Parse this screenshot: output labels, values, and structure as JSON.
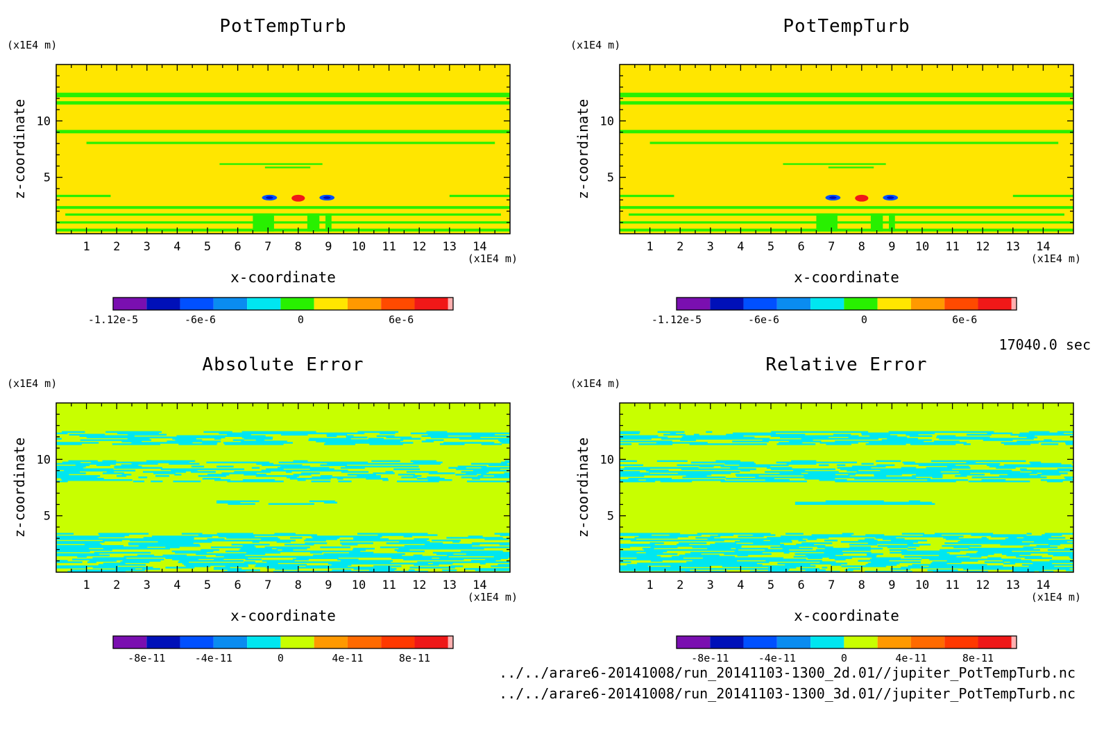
{
  "time_label": "17040.0 sec",
  "files": [
    "../../arare6-20141008/run_20141103-1300_2d.01//jupiter_PotTempTurb.nc",
    "../../arare6-20141008/run_20141103-1300_3d.01//jupiter_PotTempTurb.nc"
  ],
  "chart_data": [
    {
      "type": "heatmap",
      "title": "PotTempTurb",
      "xlabel": "x-coordinate",
      "ylabel": "z-coordinate",
      "x_unit": "(x1E4 m)",
      "y_unit": "(x1E4 m)",
      "xlim": [
        0,
        15
      ],
      "ylim": [
        0,
        15
      ],
      "x_ticks": [
        1,
        2,
        3,
        4,
        5,
        6,
        7,
        8,
        9,
        10,
        11,
        12,
        13,
        14
      ],
      "y_ticks": [
        5,
        10
      ],
      "colorbar": {
        "colors": [
          "#7a0fb0",
          "#0010b8",
          "#0050ff",
          "#0a8cf0",
          "#00e6f0",
          "#28f000",
          "#ffe600",
          "#ff9900",
          "#ff4a00",
          "#f01818",
          "#ffb0b0"
        ],
        "tick_labels": [
          "-1.12e-5",
          "-6e-6",
          "0",
          "6e-6"
        ],
        "tick_values": [
          -1.12e-05,
          -6e-06,
          0,
          6e-06
        ],
        "range": [
          -1.12e-05,
          8.8e-06
        ]
      },
      "background_level": "#ffe600",
      "band_level": "#28f000",
      "features": [
        {
          "kind": "band",
          "z": [
            12.1,
            12.5
          ],
          "x": [
            0,
            15
          ]
        },
        {
          "kind": "band",
          "z": [
            11.45,
            11.75
          ],
          "x": [
            0,
            15
          ]
        },
        {
          "kind": "band",
          "z": [
            8.9,
            9.2
          ],
          "x": [
            0,
            15
          ]
        },
        {
          "kind": "band",
          "z": [
            7.95,
            8.15
          ],
          "x": [
            1,
            14.5
          ]
        },
        {
          "kind": "band",
          "z": [
            6.1,
            6.25
          ],
          "x": [
            5.4,
            8.8
          ]
        },
        {
          "kind": "band",
          "z": [
            5.8,
            5.95
          ],
          "x": [
            6.9,
            8.4
          ]
        },
        {
          "kind": "band",
          "z": [
            3.25,
            3.45
          ],
          "x": [
            0,
            1.8
          ]
        },
        {
          "kind": "band",
          "z": [
            3.25,
            3.45
          ],
          "x": [
            13,
            15
          ]
        },
        {
          "kind": "band",
          "z": [
            2.2,
            2.45
          ],
          "x": [
            0,
            15
          ]
        },
        {
          "kind": "band",
          "z": [
            1.6,
            1.8
          ],
          "x": [
            0.3,
            14.7
          ]
        },
        {
          "kind": "band",
          "z": [
            0.9,
            1.1
          ],
          "x": [
            0,
            15
          ]
        },
        {
          "kind": "band",
          "z": [
            0.2,
            0.45
          ],
          "x": [
            0,
            15
          ]
        },
        {
          "kind": "band",
          "z": [
            0.2,
            1.8
          ],
          "x": [
            6.5,
            7.2
          ]
        },
        {
          "kind": "band",
          "z": [
            0.2,
            1.8
          ],
          "x": [
            8.3,
            8.7
          ]
        },
        {
          "kind": "band",
          "z": [
            0.2,
            1.8
          ],
          "x": [
            8.9,
            9.1
          ]
        },
        {
          "kind": "blob",
          "x": 7.05,
          "z": 3.2,
          "rx": 0.25,
          "rz": 0.25,
          "level": "#0050ff"
        },
        {
          "kind": "blob",
          "x": 8.95,
          "z": 3.2,
          "rx": 0.25,
          "rz": 0.25,
          "level": "#0050ff"
        },
        {
          "kind": "blob",
          "x": 7.05,
          "z": 3.2,
          "rx": 0.12,
          "rz": 0.12,
          "level": "#0010b8"
        },
        {
          "kind": "blob",
          "x": 8.95,
          "z": 3.2,
          "rx": 0.12,
          "rz": 0.12,
          "level": "#0010b8"
        },
        {
          "kind": "blob",
          "x": 8.0,
          "z": 3.15,
          "rx": 0.22,
          "rz": 0.3,
          "level": "#f01818"
        }
      ]
    },
    {
      "type": "heatmap",
      "title": "PotTempTurb",
      "xlabel": "x-coordinate",
      "ylabel": "z-coordinate",
      "x_unit": "(x1E4 m)",
      "y_unit": "(x1E4 m)",
      "xlim": [
        0,
        15
      ],
      "ylim": [
        0,
        15
      ],
      "x_ticks": [
        1,
        2,
        3,
        4,
        5,
        6,
        7,
        8,
        9,
        10,
        11,
        12,
        13,
        14
      ],
      "y_ticks": [
        5,
        10
      ],
      "colorbar": {
        "colors": [
          "#7a0fb0",
          "#0010b8",
          "#0050ff",
          "#0a8cf0",
          "#00e6f0",
          "#28f000",
          "#ffe600",
          "#ff9900",
          "#ff4a00",
          "#f01818",
          "#ffb0b0"
        ],
        "tick_labels": [
          "-1.12e-5",
          "-6e-6",
          "0",
          "6e-6"
        ],
        "tick_values": [
          -1.12e-05,
          -6e-06,
          0,
          6e-06
        ],
        "range": [
          -1.12e-05,
          8.8e-06
        ]
      },
      "background_level": "#ffe600",
      "band_level": "#28f000",
      "features": [
        {
          "kind": "band",
          "z": [
            12.1,
            12.5
          ],
          "x": [
            0,
            15
          ]
        },
        {
          "kind": "band",
          "z": [
            11.45,
            11.75
          ],
          "x": [
            0,
            15
          ]
        },
        {
          "kind": "band",
          "z": [
            8.9,
            9.2
          ],
          "x": [
            0,
            15
          ]
        },
        {
          "kind": "band",
          "z": [
            7.95,
            8.15
          ],
          "x": [
            1,
            14.5
          ]
        },
        {
          "kind": "band",
          "z": [
            6.1,
            6.25
          ],
          "x": [
            5.4,
            8.8
          ]
        },
        {
          "kind": "band",
          "z": [
            5.8,
            5.95
          ],
          "x": [
            6.9,
            8.4
          ]
        },
        {
          "kind": "band",
          "z": [
            3.25,
            3.45
          ],
          "x": [
            0,
            1.8
          ]
        },
        {
          "kind": "band",
          "z": [
            3.25,
            3.45
          ],
          "x": [
            13,
            15
          ]
        },
        {
          "kind": "band",
          "z": [
            2.2,
            2.45
          ],
          "x": [
            0,
            15
          ]
        },
        {
          "kind": "band",
          "z": [
            1.6,
            1.8
          ],
          "x": [
            0.3,
            14.7
          ]
        },
        {
          "kind": "band",
          "z": [
            0.9,
            1.1
          ],
          "x": [
            0,
            15
          ]
        },
        {
          "kind": "band",
          "z": [
            0.2,
            0.45
          ],
          "x": [
            0,
            15
          ]
        },
        {
          "kind": "band",
          "z": [
            0.2,
            1.8
          ],
          "x": [
            6.5,
            7.2
          ]
        },
        {
          "kind": "band",
          "z": [
            0.2,
            1.8
          ],
          "x": [
            8.3,
            8.7
          ]
        },
        {
          "kind": "band",
          "z": [
            0.2,
            1.8
          ],
          "x": [
            8.9,
            9.1
          ]
        },
        {
          "kind": "blob",
          "x": 7.05,
          "z": 3.2,
          "rx": 0.25,
          "rz": 0.25,
          "level": "#0050ff"
        },
        {
          "kind": "blob",
          "x": 8.95,
          "z": 3.2,
          "rx": 0.25,
          "rz": 0.25,
          "level": "#0050ff"
        },
        {
          "kind": "blob",
          "x": 7.05,
          "z": 3.2,
          "rx": 0.12,
          "rz": 0.12,
          "level": "#0010b8"
        },
        {
          "kind": "blob",
          "x": 8.95,
          "z": 3.2,
          "rx": 0.12,
          "rz": 0.12,
          "level": "#0010b8"
        },
        {
          "kind": "blob",
          "x": 8.0,
          "z": 3.15,
          "rx": 0.22,
          "rz": 0.3,
          "level": "#f01818"
        }
      ]
    },
    {
      "type": "heatmap",
      "title": "Absolute Error",
      "xlabel": "x-coordinate",
      "ylabel": "z-coordinate",
      "x_unit": "(x1E4 m)",
      "y_unit": "(x1E4 m)",
      "xlim": [
        0,
        15
      ],
      "ylim": [
        0,
        15
      ],
      "x_ticks": [
        1,
        2,
        3,
        4,
        5,
        6,
        7,
        8,
        9,
        10,
        11,
        12,
        13,
        14
      ],
      "y_ticks": [
        5,
        10
      ],
      "colorbar": {
        "colors": [
          "#7a0fb0",
          "#0010b8",
          "#0050ff",
          "#0a8cf0",
          "#00e6f0",
          "#c8ff00",
          "#ff9900",
          "#ff6a00",
          "#ff3800",
          "#ee1818",
          "#ffb0b0"
        ],
        "tick_labels": [
          "-8e-11",
          "-4e-11",
          "0",
          "4e-11",
          "8e-11"
        ],
        "tick_values": [
          -8e-11,
          -4e-11,
          0,
          4e-11,
          8e-11
        ],
        "range": [
          -1e-10,
          1e-10
        ]
      },
      "background_level": "#c8ff00",
      "band_level": "#00e6f0",
      "features": [
        {
          "kind": "noise",
          "z": [
            11.3,
            12.4
          ],
          "density": 0.55,
          "seed": 11
        },
        {
          "kind": "noise",
          "z": [
            8.0,
            9.8
          ],
          "density": 0.5,
          "seed": 23
        },
        {
          "kind": "noise",
          "z": [
            6.0,
            6.3
          ],
          "x": [
            5.3,
            9.3
          ],
          "density": 0.6,
          "seed": 37
        },
        {
          "kind": "noise",
          "z": [
            0,
            3.4
          ],
          "density": 0.55,
          "seed": 41
        }
      ]
    },
    {
      "type": "heatmap",
      "title": "Relative Error",
      "xlabel": "x-coordinate",
      "ylabel": "z-coordinate",
      "x_unit": "(x1E4 m)",
      "y_unit": "(x1E4 m)",
      "xlim": [
        0,
        15
      ],
      "ylim": [
        0,
        15
      ],
      "x_ticks": [
        1,
        2,
        3,
        4,
        5,
        6,
        7,
        8,
        9,
        10,
        11,
        12,
        13,
        14
      ],
      "y_ticks": [
        5,
        10
      ],
      "colorbar": {
        "colors": [
          "#7a0fb0",
          "#0010b8",
          "#0050ff",
          "#0a8cf0",
          "#00e6f0",
          "#c8ff00",
          "#ff9900",
          "#ff6a00",
          "#ff3800",
          "#ee1818",
          "#ffb0b0"
        ],
        "tick_labels": [
          "-8e-11",
          "-4e-11",
          "0",
          "4e-11",
          "8e-11"
        ],
        "tick_values": [
          -8e-11,
          -4e-11,
          0,
          4e-11,
          8e-11
        ],
        "range": [
          -1e-10,
          1e-10
        ]
      },
      "background_level": "#c8ff00",
      "band_level": "#00e6f0",
      "features": [
        {
          "kind": "noise",
          "z": [
            11.3,
            12.4
          ],
          "density": 0.6,
          "seed": 53
        },
        {
          "kind": "noise",
          "z": [
            8.0,
            9.8
          ],
          "density": 0.6,
          "seed": 67
        },
        {
          "kind": "noise",
          "z": [
            6.0,
            6.3
          ],
          "x": [
            5.8,
            9.8
          ],
          "density": 0.75,
          "seed": 71
        },
        {
          "kind": "noise",
          "z": [
            0,
            3.4
          ],
          "density": 0.6,
          "seed": 83
        }
      ]
    }
  ]
}
